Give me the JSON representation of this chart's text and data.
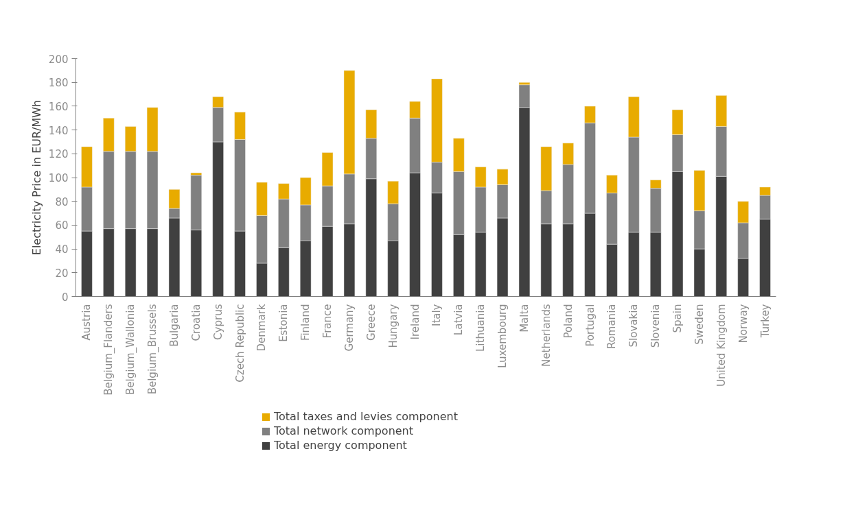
{
  "chart_data": {
    "type": "bar",
    "stacked": true,
    "ylabel": "Electricity Price in EUR/MWh",
    "categories": [
      "Austria",
      "Belgium_Flanders",
      "Belgium_Wallonia",
      "Belgium_Brussels",
      "Bulgaria",
      "Croatia",
      "Cyprus",
      "Czech Republic",
      "Denmark",
      "Estonia",
      "Finland",
      "France",
      "Germany",
      "Greece",
      "Hungary",
      "Ireland",
      "Italy",
      "Latvia",
      "Lithuania",
      "Luxembourg",
      "Malta",
      "Netherlands",
      "Poland",
      "Portugal",
      "Romania",
      "Slovakia",
      "Slovenia",
      "Spain",
      "Sweden",
      "United Kingdom",
      "Norway",
      "Turkey"
    ],
    "series": [
      {
        "name": "Total energy component",
        "color": "#404040",
        "values": [
          55,
          57,
          57,
          57,
          66,
          56,
          130,
          55,
          28,
          41,
          47,
          59,
          61,
          99,
          47,
          104,
          87,
          52,
          54,
          66,
          159,
          61,
          61,
          70,
          44,
          54,
          54,
          105,
          40,
          101,
          32,
          65
        ]
      },
      {
        "name": "Total network component",
        "color": "#808080",
        "values": [
          37,
          65,
          65,
          65,
          8,
          46,
          29,
          77,
          40,
          41,
          30,
          34,
          42,
          34,
          31,
          46,
          26,
          53,
          38,
          28,
          19,
          28,
          50,
          76,
          43,
          80,
          37,
          31,
          32,
          42,
          30,
          20
        ]
      },
      {
        "name": "Total taxes and levies component",
        "color": "#e8ab00",
        "values": [
          34,
          28,
          21,
          37,
          16,
          2,
          9,
          23,
          28,
          13,
          23,
          28,
          87,
          24,
          19,
          14,
          70,
          28,
          17,
          13,
          2,
          37,
          18,
          14,
          15,
          34,
          7,
          21,
          34,
          26,
          18,
          7
        ]
      }
    ],
    "ylim": [
      0,
      200
    ],
    "yticks": [
      0,
      20,
      40,
      60,
      80,
      100,
      120,
      140,
      160,
      180,
      200
    ],
    "grid": false,
    "legend": "bottom"
  }
}
